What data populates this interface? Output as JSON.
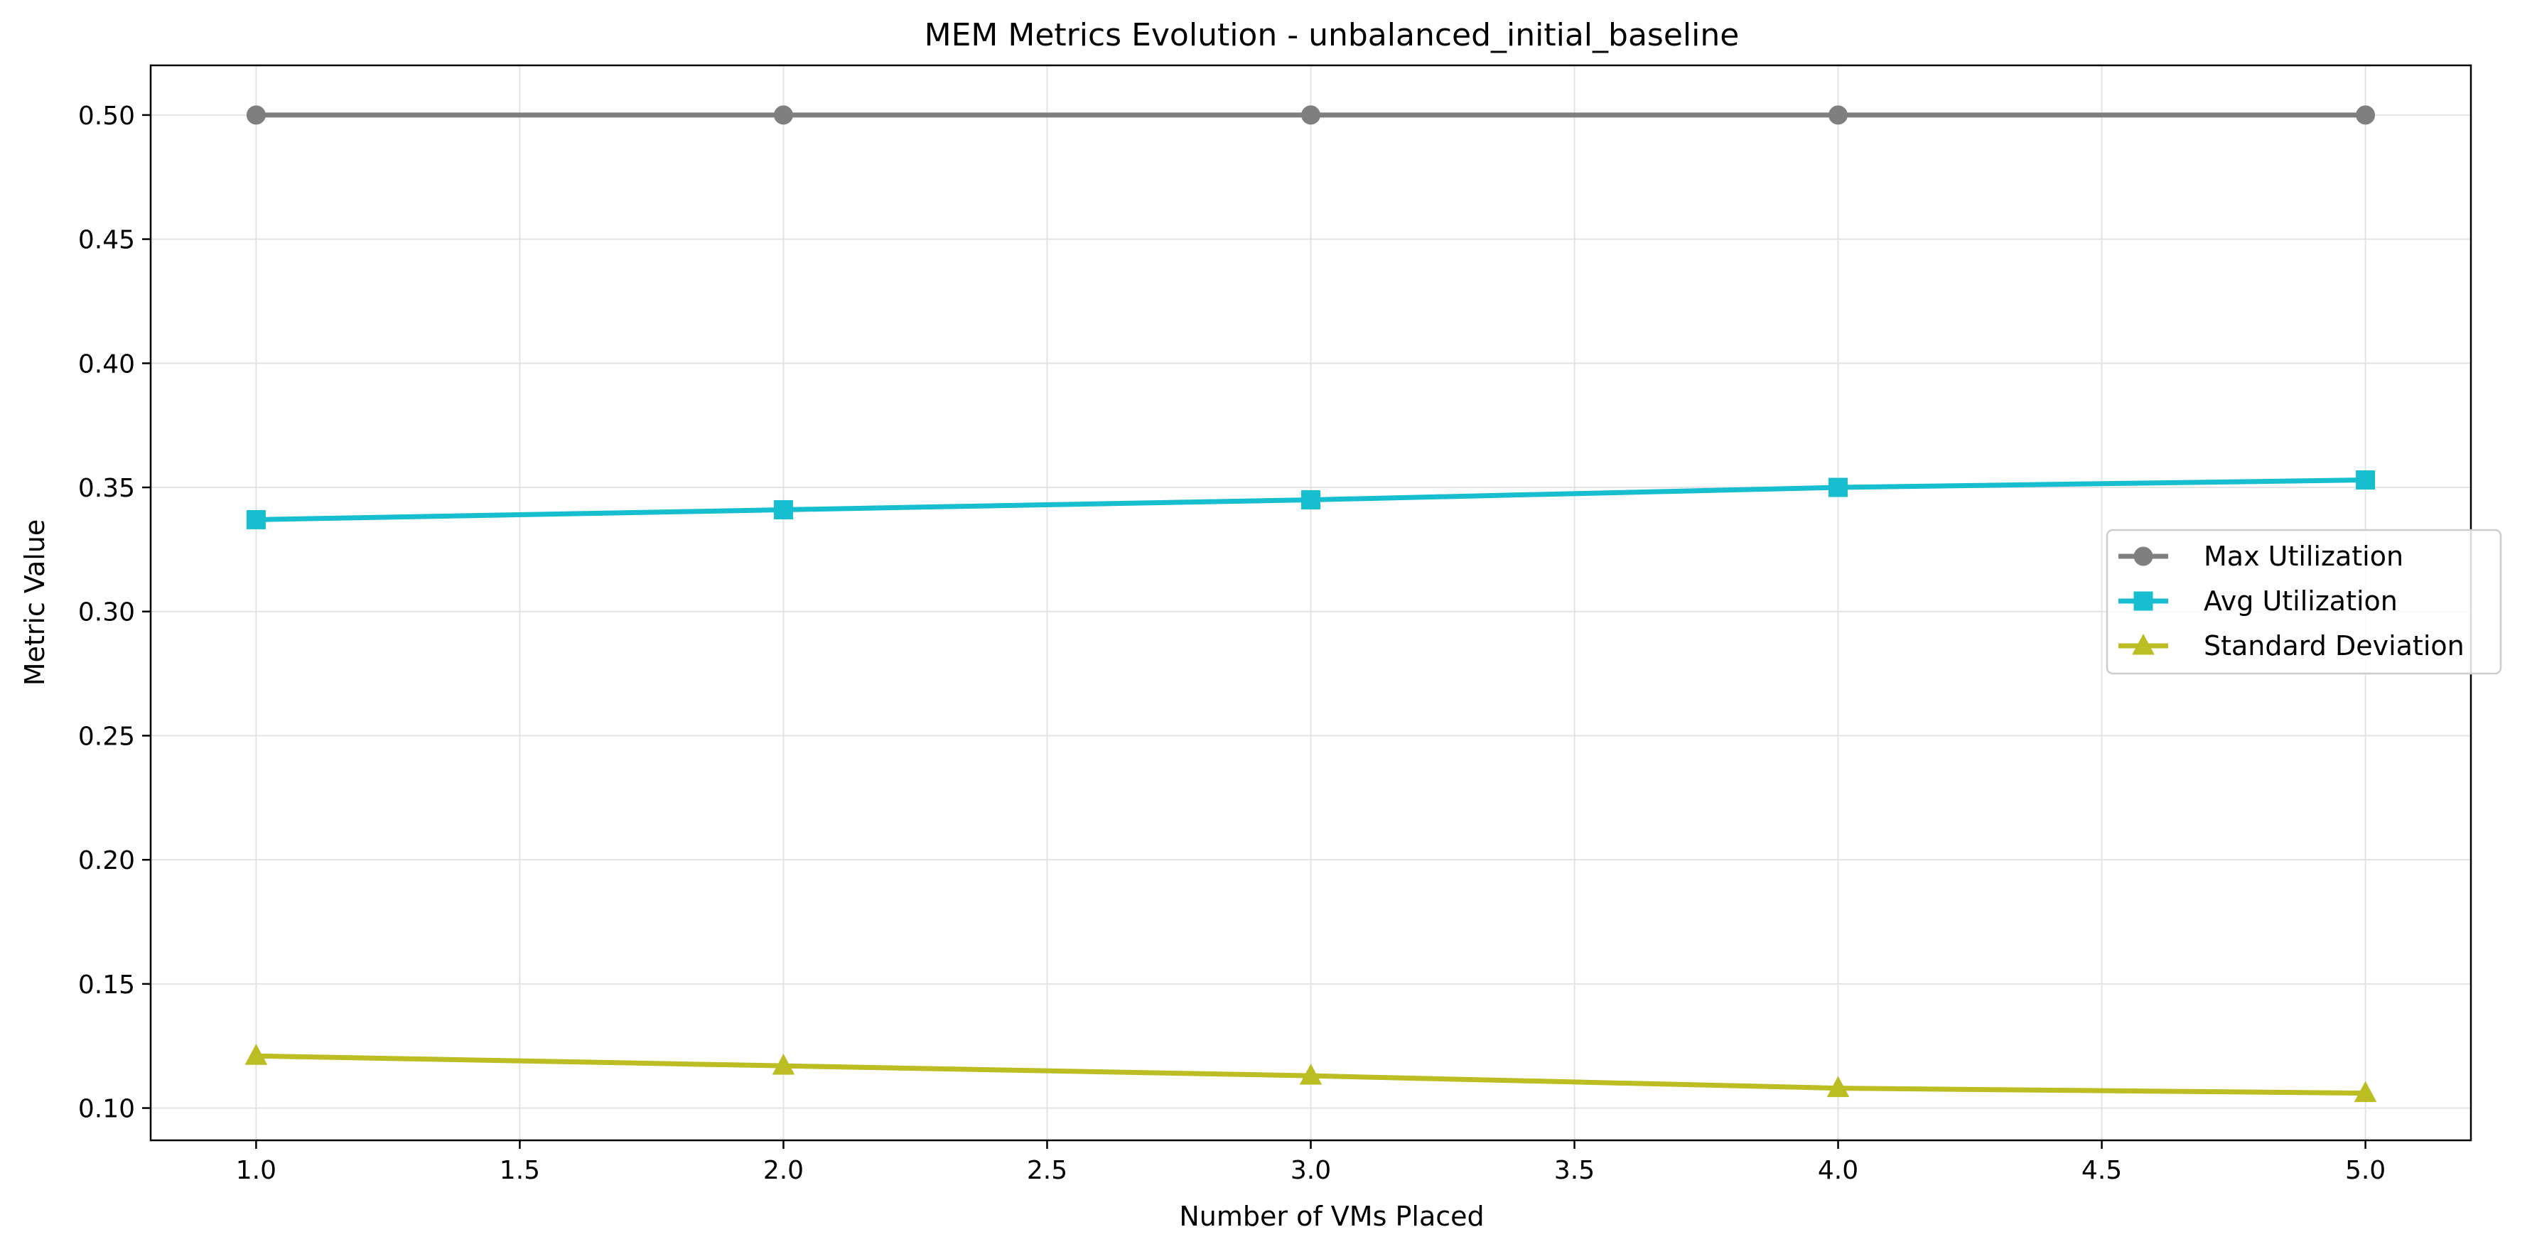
{
  "chart_data": {
    "type": "line",
    "title": "MEM Metrics Evolution - unbalanced_initial_baseline",
    "xlabel": "Number of VMs Placed",
    "ylabel": "Metric Value",
    "x": [
      1.0,
      2.0,
      3.0,
      4.0,
      5.0
    ],
    "xlim": [
      0.8,
      5.2
    ],
    "ylim": [
      0.087,
      0.52
    ],
    "xticks": [
      "1.0",
      "1.5",
      "2.0",
      "2.5",
      "3.0",
      "3.5",
      "4.0",
      "4.5",
      "5.0"
    ],
    "yticks": [
      "0.10",
      "0.15",
      "0.20",
      "0.25",
      "0.30",
      "0.35",
      "0.40",
      "0.45",
      "0.50"
    ],
    "grid": true,
    "legend_position": "center-right",
    "series": [
      {
        "name": "Max Utilization",
        "values": [
          0.5,
          0.5,
          0.5,
          0.5,
          0.5
        ],
        "color": "#7f7f7f",
        "marker": "circle"
      },
      {
        "name": "Avg Utilization",
        "values": [
          0.337,
          0.341,
          0.345,
          0.35,
          0.353
        ],
        "color": "#17becf",
        "marker": "square"
      },
      {
        "name": "Standard Deviation",
        "values": [
          0.121,
          0.117,
          0.113,
          0.108,
          0.106
        ],
        "color": "#bcbd22",
        "marker": "triangle"
      }
    ]
  }
}
